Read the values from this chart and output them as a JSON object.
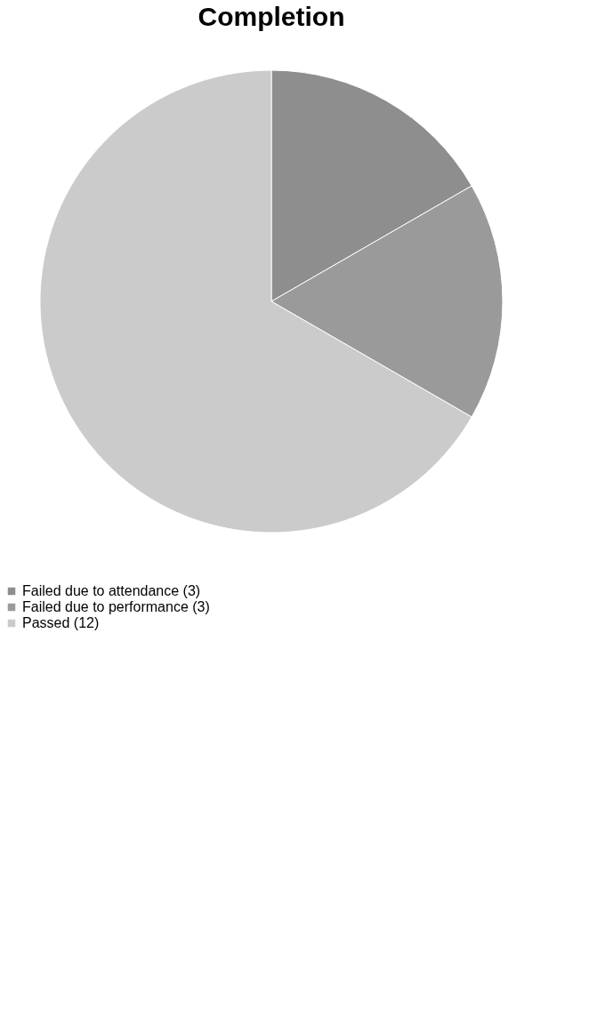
{
  "chart_data": {
    "type": "pie",
    "title": "Completion",
    "categories": [
      "Failed due to attendance (3)",
      "Failed due to performance (3)",
      "Passed (12)"
    ],
    "values": [
      3,
      3,
      12
    ],
    "colors": [
      "#8e8e8e",
      "#9a9a9a",
      "#cbcbcb"
    ],
    "legend": "bottom"
  }
}
